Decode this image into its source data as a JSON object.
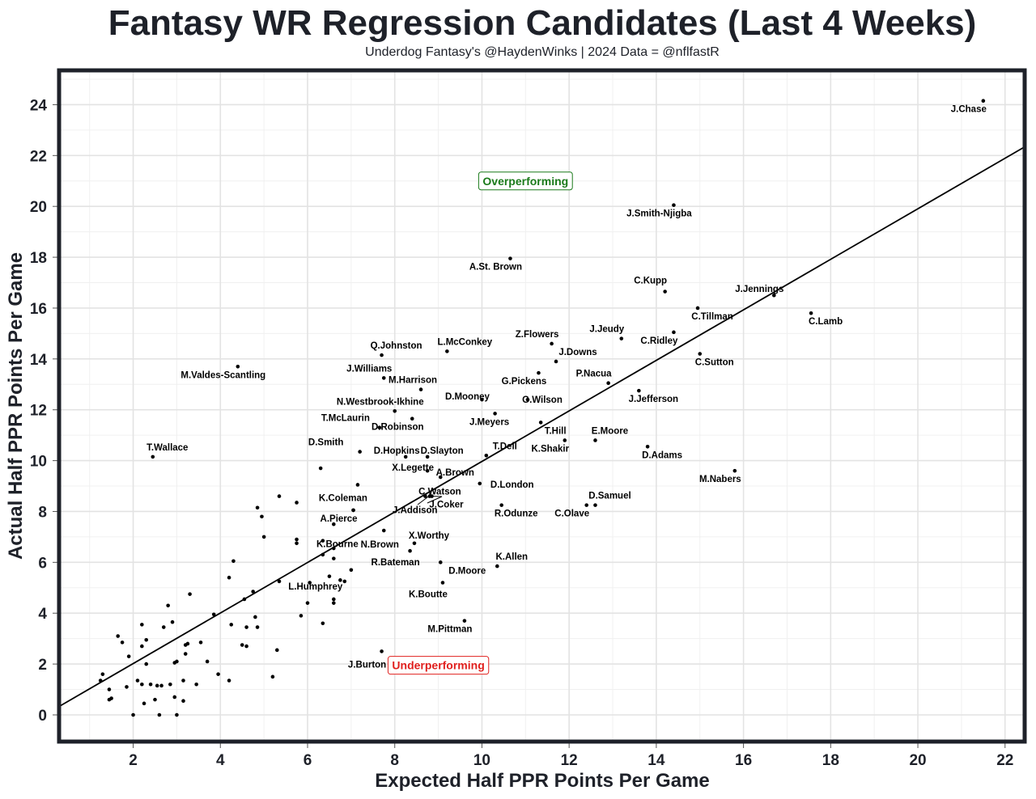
{
  "chart_data": {
    "type": "scatter",
    "title": "Fantasy WR Regression Candidates (Last 4 Weeks)",
    "subtitle": "Underdog Fantasy's @HaydenWinks | 2024 Data = @nflfastR",
    "xlabel": "Expected Half PPR Points Per Game",
    "ylabel": "Actual Half PPR Points Per Game",
    "xlim": [
      0.3,
      22.45
    ],
    "ylim": [
      -1.05,
      25.35
    ],
    "xticks": [
      2,
      4,
      6,
      8,
      10,
      12,
      14,
      16,
      18,
      20,
      22
    ],
    "yticks": [
      0,
      2,
      4,
      6,
      8,
      10,
      12,
      14,
      16,
      18,
      20,
      22,
      24
    ],
    "xtick_labels": [
      "2",
      "4",
      "6",
      "8",
      "10",
      "12",
      "14",
      "16",
      "18",
      "20",
      "22"
    ],
    "ytick_labels": [
      "0",
      "2",
      "4",
      "6",
      "8",
      "10",
      "12",
      "14",
      "16",
      "18",
      "20",
      "22",
      "24"
    ],
    "trend_line": {
      "x": [
        0.3,
        22.45
      ],
      "y": [
        0.33,
        22.34
      ]
    },
    "annotations": [
      {
        "text": "Overperforming",
        "x": 11.0,
        "y": 21.0,
        "color": "#1a7a1a"
      },
      {
        "text": "Underperforming",
        "x": 9.0,
        "y": 1.95,
        "color": "#e0201e"
      }
    ],
    "labeled_points": [
      {
        "name": "J.Chase",
        "x": 21.5,
        "y": 24.15
      },
      {
        "name": "J.Smith-Njigba",
        "x": 14.4,
        "y": 20.05
      },
      {
        "name": "A.St. Brown",
        "x": 10.65,
        "y": 17.95
      },
      {
        "name": "C.Kupp",
        "x": 14.2,
        "y": 16.65
      },
      {
        "name": "J.Jennings",
        "x": 16.7,
        "y": 16.5
      },
      {
        "name": "C.Tillman",
        "x": 14.95,
        "y": 16.0
      },
      {
        "name": "C.Lamb",
        "x": 17.55,
        "y": 15.8
      },
      {
        "name": "J.Jeudy",
        "x": 13.2,
        "y": 14.8
      },
      {
        "name": "C.Ridley",
        "x": 14.4,
        "y": 15.05
      },
      {
        "name": "C.Sutton",
        "x": 15.0,
        "y": 14.2
      },
      {
        "name": "Z.Flowers",
        "x": 11.6,
        "y": 14.6
      },
      {
        "name": "J.Downs",
        "x": 11.7,
        "y": 13.9
      },
      {
        "name": "P.Nacua",
        "x": 12.9,
        "y": 13.05
      },
      {
        "name": "G.Pickens",
        "x": 11.3,
        "y": 13.45
      },
      {
        "name": "J.Jefferson",
        "x": 13.6,
        "y": 12.75
      },
      {
        "name": "G.Wilson",
        "x": 11.05,
        "y": 12.4
      },
      {
        "name": "J.Meyers",
        "x": 10.3,
        "y": 11.85
      },
      {
        "name": "T.Hill",
        "x": 11.35,
        "y": 11.5
      },
      {
        "name": "K.Shakir",
        "x": 11.9,
        "y": 10.8
      },
      {
        "name": "E.Moore",
        "x": 12.6,
        "y": 10.8
      },
      {
        "name": "D.Adams",
        "x": 13.8,
        "y": 10.55
      },
      {
        "name": "M.Nabers",
        "x": 15.8,
        "y": 9.6
      },
      {
        "name": "Q.Johnston",
        "x": 7.7,
        "y": 14.15
      },
      {
        "name": "L.McConkey",
        "x": 9.2,
        "y": 14.3
      },
      {
        "name": "M.Valdes-Scantling",
        "x": 4.4,
        "y": 13.7
      },
      {
        "name": "J.Williams",
        "x": 7.75,
        "y": 13.25
      },
      {
        "name": "M.Harrison",
        "x": 8.6,
        "y": 12.8
      },
      {
        "name": "N.Westbrook-Ikhine",
        "x": 8.0,
        "y": 11.95
      },
      {
        "name": "D.Mooney",
        "x": 10.0,
        "y": 12.4
      },
      {
        "name": "T.McLaurin",
        "x": 7.65,
        "y": 11.3
      },
      {
        "name": "D.Robinson",
        "x": 8.4,
        "y": 11.65
      },
      {
        "name": "D.Smith",
        "x": 7.2,
        "y": 10.35
      },
      {
        "name": "D.Hopkins",
        "x": 8.25,
        "y": 10.15
      },
      {
        "name": "D.Slayton",
        "x": 8.75,
        "y": 10.15
      },
      {
        "name": "T.Dell",
        "x": 10.1,
        "y": 10.2
      },
      {
        "name": "T.Wallace",
        "x": 2.45,
        "y": 10.15
      },
      {
        "name": "X.Legette",
        "x": 8.75,
        "y": 9.6
      },
      {
        "name": "A.Brown",
        "x": 9.05,
        "y": 9.35
      },
      {
        "name": "D.London",
        "x": 9.95,
        "y": 9.1
      },
      {
        "name": "K.Coleman",
        "x": 7.15,
        "y": 9.05
      },
      {
        "name": "C.Watson",
        "x": 8.7,
        "y": 8.6
      },
      {
        "name": "J.Coker",
        "x": 8.85,
        "y": 8.6
      },
      {
        "name": "J.Addison",
        "x": 8.8,
        "y": 8.6
      },
      {
        "name": "R.Odunze",
        "x": 10.45,
        "y": 8.25
      },
      {
        "name": "D.Samuel",
        "x": 12.6,
        "y": 8.25
      },
      {
        "name": "C.Olave",
        "x": 12.4,
        "y": 8.25
      },
      {
        "name": "A.Pierce",
        "x": 7.05,
        "y": 8.05
      },
      {
        "name": "K.Bourne",
        "x": 6.35,
        "y": 6.85
      },
      {
        "name": "N.Brown",
        "x": 7.75,
        "y": 7.25
      },
      {
        "name": "X.Worthy",
        "x": 8.45,
        "y": 6.75
      },
      {
        "name": "R.Bateman",
        "x": 8.35,
        "y": 6.45
      },
      {
        "name": "K.Allen",
        "x": 10.35,
        "y": 5.85
      },
      {
        "name": "D.Moore",
        "x": 9.05,
        "y": 6.0
      },
      {
        "name": "L.Humphrey",
        "x": 6.85,
        "y": 5.25
      },
      {
        "name": "K.Boutte",
        "x": 9.1,
        "y": 5.2
      },
      {
        "name": "M.Pittman",
        "x": 9.6,
        "y": 3.7
      },
      {
        "name": "J.Burton",
        "x": 7.7,
        "y": 2.5
      }
    ],
    "other_points": [
      [
        6.3,
        9.7
      ],
      [
        7.05,
        8.05
      ],
      [
        5.35,
        8.6
      ],
      [
        5.75,
        8.35
      ],
      [
        4.85,
        8.15
      ],
      [
        4.95,
        7.8
      ],
      [
        6.6,
        7.5
      ],
      [
        5.0,
        7.0
      ],
      [
        5.75,
        6.9
      ],
      [
        5.75,
        6.75
      ],
      [
        6.6,
        6.55
      ],
      [
        6.35,
        6.3
      ],
      [
        6.6,
        6.15
      ],
      [
        4.3,
        6.05
      ],
      [
        7.0,
        5.7
      ],
      [
        6.75,
        5.3
      ],
      [
        6.5,
        5.45
      ],
      [
        4.2,
        5.4
      ],
      [
        5.35,
        5.25
      ],
      [
        6.05,
        5.2
      ],
      [
        4.75,
        4.85
      ],
      [
        3.3,
        4.75
      ],
      [
        6.6,
        4.55
      ],
      [
        4.55,
        4.55
      ],
      [
        6.0,
        4.4
      ],
      [
        6.6,
        4.4
      ],
      [
        2.8,
        4.3
      ],
      [
        3.85,
        3.95
      ],
      [
        5.85,
        3.9
      ],
      [
        4.8,
        3.85
      ],
      [
        6.35,
        3.6
      ],
      [
        2.9,
        3.65
      ],
      [
        2.2,
        3.55
      ],
      [
        4.25,
        3.55
      ],
      [
        4.6,
        3.45
      ],
      [
        4.85,
        3.45
      ],
      [
        2.7,
        3.45
      ],
      [
        1.65,
        3.1
      ],
      [
        1.75,
        2.85
      ],
      [
        3.55,
        2.85
      ],
      [
        2.3,
        2.95
      ],
      [
        3.25,
        2.8
      ],
      [
        3.2,
        2.75
      ],
      [
        4.5,
        2.75
      ],
      [
        4.6,
        2.7
      ],
      [
        2.2,
        2.7
      ],
      [
        5.3,
        2.55
      ],
      [
        1.9,
        2.3
      ],
      [
        3.2,
        2.4
      ],
      [
        3.7,
        2.1
      ],
      [
        2.3,
        2.0
      ],
      [
        2.95,
        2.05
      ],
      [
        3.0,
        2.1
      ],
      [
        3.95,
        1.6
      ],
      [
        1.3,
        1.6
      ],
      [
        5.2,
        1.5
      ],
      [
        2.1,
        1.35
      ],
      [
        3.15,
        1.35
      ],
      [
        4.2,
        1.35
      ],
      [
        1.25,
        1.35
      ],
      [
        2.2,
        1.2
      ],
      [
        2.4,
        1.2
      ],
      [
        2.65,
        1.15
      ],
      [
        2.55,
        1.15
      ],
      [
        2.85,
        1.2
      ],
      [
        3.45,
        1.2
      ],
      [
        1.85,
        1.1
      ],
      [
        1.45,
        1.0
      ],
      [
        2.95,
        0.7
      ],
      [
        1.5,
        0.65
      ],
      [
        1.45,
        0.6
      ],
      [
        2.5,
        0.6
      ],
      [
        3.15,
        0.55
      ],
      [
        2.25,
        0.45
      ],
      [
        2.0,
        0.0
      ],
      [
        2.6,
        0.0
      ],
      [
        3.0,
        0.0
      ]
    ]
  }
}
